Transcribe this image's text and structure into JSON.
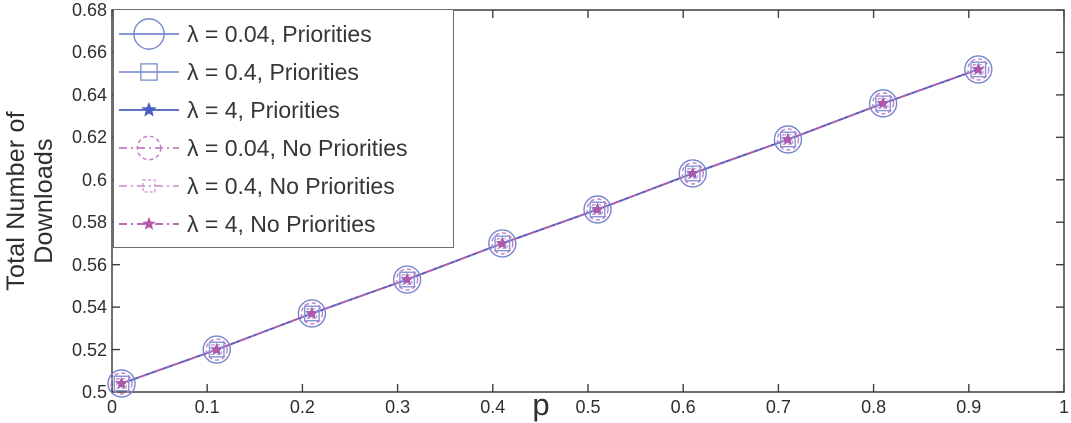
{
  "chart_data": {
    "type": "line",
    "title": "",
    "xlabel": "p",
    "ylabel": "Total Number of Downloads",
    "ylabel_lines": [
      "Total Number of",
      "Downloads"
    ],
    "xlim": [
      0,
      1
    ],
    "ylim": [
      0.5,
      0.68
    ],
    "grid": false,
    "legend_position": "top-left",
    "axis_color": "#3f3f3f",
    "text_color": "#2f2f2f",
    "xticks": [
      0,
      0.1,
      0.2,
      0.3,
      0.4,
      0.5,
      0.6,
      0.7,
      0.8,
      0.9,
      1
    ],
    "xtick_labels": [
      "0",
      "0.1",
      "0.2",
      "0.3",
      "0.4",
      "0.5",
      "0.6",
      "0.7",
      "0.8",
      "0.9",
      "1"
    ],
    "yticks": [
      0.5,
      0.52,
      0.54,
      0.56,
      0.58,
      0.6,
      0.62,
      0.64,
      0.66,
      0.68
    ],
    "ytick_labels": [
      "0.5",
      "0.52",
      "0.54",
      "0.56",
      "0.58",
      "0.6",
      "0.62",
      "0.64",
      "0.66",
      "0.68"
    ],
    "x": [
      0.01,
      0.11,
      0.21,
      0.31,
      0.41,
      0.51,
      0.61,
      0.71,
      0.81,
      0.91
    ],
    "series": [
      {
        "name": "λ = 0.04, Priorities",
        "color": "#7486cd",
        "line": "solid",
        "marker": "circle-large",
        "values": [
          0.504,
          0.52,
          0.537,
          0.553,
          0.57,
          0.586,
          0.603,
          0.619,
          0.636,
          0.652
        ]
      },
      {
        "name": "λ = 0.4, Priorities",
        "color": "#8294d4",
        "line": "solid",
        "marker": "square",
        "values": [
          0.504,
          0.52,
          0.537,
          0.553,
          0.57,
          0.586,
          0.603,
          0.619,
          0.636,
          0.652
        ]
      },
      {
        "name": "λ = 4, Priorities",
        "color": "#4c5fc0",
        "line": "solid",
        "marker": "star",
        "values": [
          0.504,
          0.52,
          0.537,
          0.553,
          0.57,
          0.586,
          0.603,
          0.619,
          0.636,
          0.652
        ]
      },
      {
        "name": "λ = 0.04, No Priorities",
        "color": "#c47cc2",
        "line": "dash-dot",
        "marker": "circle-dashed",
        "values": [
          0.504,
          0.52,
          0.537,
          0.553,
          0.57,
          0.586,
          0.603,
          0.619,
          0.636,
          0.652
        ]
      },
      {
        "name": "λ = 0.4, No Priorities",
        "color": "#d29ad2",
        "line": "dash-dot",
        "marker": "square-dashed",
        "values": [
          0.504,
          0.52,
          0.537,
          0.553,
          0.57,
          0.586,
          0.603,
          0.619,
          0.636,
          0.652
        ]
      },
      {
        "name": "λ = 4, No Priorities",
        "color": "#b558a8",
        "line": "dash-dot",
        "marker": "star-small",
        "values": [
          0.504,
          0.52,
          0.537,
          0.553,
          0.57,
          0.586,
          0.603,
          0.619,
          0.636,
          0.652
        ]
      }
    ]
  }
}
